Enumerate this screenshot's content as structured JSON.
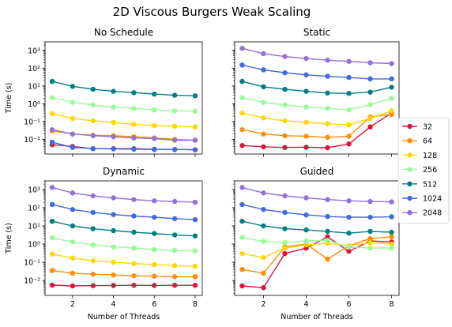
{
  "chart_data": {
    "type": "line",
    "title": "2D Viscous Burgers Weak Scaling",
    "xlabel": "Number of Threads",
    "ylabel": "Time (s)",
    "y_scale": "log",
    "x": [
      1,
      2,
      3,
      4,
      5,
      6,
      7,
      8
    ],
    "x_ticks": [
      "2",
      "4",
      "6",
      "8"
    ],
    "y_ticks": [
      {
        "value": 0.01,
        "label": "10⁻²"
      },
      {
        "value": 0.1,
        "label": "10⁻¹"
      },
      {
        "value": 1,
        "label": "10⁰"
      },
      {
        "value": 10,
        "label": "10¹"
      },
      {
        "value": 100,
        "label": "10²"
      },
      {
        "value": 1000,
        "label": "10³"
      }
    ],
    "ylim": [
      0.0015,
      3000
    ],
    "legend_placement": "right",
    "series_styles": [
      {
        "name": "32",
        "color": "#dc143c"
      },
      {
        "name": "64",
        "color": "#ff8c00"
      },
      {
        "name": "128",
        "color": "#ffd700"
      },
      {
        "name": "256",
        "color": "#98fb98"
      },
      {
        "name": "512",
        "color": "#008080"
      },
      {
        "name": "1024",
        "color": "#4169e1"
      },
      {
        "name": "2048",
        "color": "#9370db"
      }
    ],
    "panels": [
      {
        "title": "No Schedule",
        "series": [
          {
            "name": "32",
            "values": [
              0.005,
              0.004,
              0.003,
              0.003,
              0.003,
              0.0028,
              0.0027,
              0.0026
            ]
          },
          {
            "name": "64",
            "values": [
              0.03,
              0.02,
              0.017,
              0.016,
              0.014,
              0.012,
              0.01,
              0.009
            ]
          },
          {
            "name": "128",
            "values": [
              0.28,
              0.15,
              0.11,
              0.09,
              0.07,
              0.06,
              0.055,
              0.05
            ]
          },
          {
            "name": "256",
            "values": [
              2.2,
              1.2,
              0.85,
              0.65,
              0.55,
              0.45,
              0.4,
              0.38
            ]
          },
          {
            "name": "512",
            "values": [
              18,
              9.5,
              6.5,
              5,
              4.2,
              3.5,
              3.0,
              2.8
            ]
          },
          {
            "name": "1024",
            "values": [
              0.007,
              0.0035,
              0.003,
              0.0029,
              0.0028,
              0.0027,
              0.0027,
              0.0026
            ]
          },
          {
            "name": "2048",
            "values": [
              0.035,
              0.02,
              0.016,
              0.014,
              0.012,
              0.011,
              0.009,
              0.009
            ]
          }
        ]
      },
      {
        "title": "Static",
        "series": [
          {
            "name": "32",
            "values": [
              0.0045,
              0.0038,
              0.0035,
              0.0036,
              0.0034,
              0.0055,
              0.05,
              0.3
            ]
          },
          {
            "name": "64",
            "values": [
              0.035,
              0.02,
              0.016,
              0.015,
              0.013,
              0.015,
              0.18,
              0.25
            ]
          },
          {
            "name": "128",
            "values": [
              0.3,
              0.16,
              0.11,
              0.09,
              0.075,
              0.065,
              0.15,
              0.4
            ]
          },
          {
            "name": "256",
            "values": [
              2.2,
              1.2,
              0.85,
              0.65,
              0.55,
              0.45,
              0.9,
              2.0
            ]
          },
          {
            "name": "512",
            "values": [
              18,
              9,
              6.5,
              5,
              4,
              3.8,
              4.5,
              8.5
            ]
          },
          {
            "name": "1024",
            "values": [
              150,
              80,
              55,
              42,
              35,
              30,
              25,
              25
            ]
          },
          {
            "name": "2048",
            "values": [
              1300,
              650,
              450,
              350,
              280,
              240,
              200,
              180
            ]
          }
        ]
      },
      {
        "title": "Dynamic",
        "series": [
          {
            "name": "32",
            "values": [
              0.0055,
              0.005,
              0.0052,
              0.0053,
              0.0054,
              0.0053,
              0.0054,
              0.0054
            ]
          },
          {
            "name": "64",
            "values": [
              0.035,
              0.025,
              0.022,
              0.02,
              0.018,
              0.017,
              0.016,
              0.016
            ]
          },
          {
            "name": "128",
            "values": [
              0.28,
              0.17,
              0.12,
              0.1,
              0.085,
              0.075,
              0.065,
              0.06
            ]
          },
          {
            "name": "256",
            "values": [
              2.2,
              1.3,
              0.9,
              0.7,
              0.6,
              0.5,
              0.45,
              0.42
            ]
          },
          {
            "name": "512",
            "values": [
              18,
              10,
              7,
              5.5,
              4.5,
              3.8,
              3.2,
              2.8
            ]
          },
          {
            "name": "1024",
            "values": [
              150,
              80,
              55,
              42,
              35,
              30,
              25,
              22
            ]
          },
          {
            "name": "2048",
            "values": [
              1300,
              650,
              450,
              350,
              280,
              240,
              220,
              200
            ]
          }
        ]
      },
      {
        "title": "Guided",
        "series": [
          {
            "name": "32",
            "values": [
              0.005,
              0.004,
              0.3,
              0.6,
              2.5,
              0.4,
              1.5,
              1.3
            ]
          },
          {
            "name": "64",
            "values": [
              0.04,
              0.025,
              0.7,
              1.0,
              0.15,
              0.8,
              2.0,
              2.5
            ]
          },
          {
            "name": "128",
            "values": [
              0.3,
              0.18,
              0.6,
              0.9,
              1.1,
              0.8,
              1.2,
              1.0
            ]
          },
          {
            "name": "256",
            "values": [
              2.3,
              1.4,
              1.2,
              1.5,
              1.6,
              0.7,
              0.6,
              0.6
            ]
          },
          {
            "name": "512",
            "values": [
              18,
              10,
              7,
              6,
              5,
              4,
              5,
              4.5
            ]
          },
          {
            "name": "1024",
            "values": [
              150,
              80,
              55,
              40,
              33,
              30,
              30,
              32
            ]
          },
          {
            "name": "2048",
            "values": [
              1300,
              650,
              450,
              350,
              280,
              240,
              220,
              210
            ]
          }
        ]
      }
    ]
  }
}
